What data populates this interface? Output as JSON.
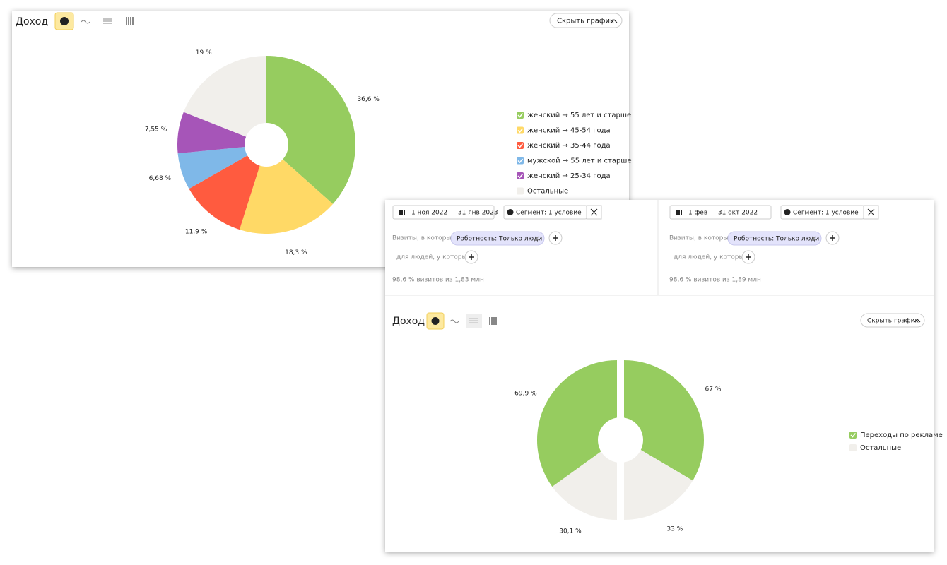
{
  "panel_top": {
    "title": "Доход",
    "hide_button": "Скрыть график"
  },
  "panel_bottom": {
    "segments": [
      {
        "date": "1 ноя 2022 — 31 янв 2023",
        "segment": "Сегмент: 1 условие",
        "visits_label": "Визиты, в которых",
        "tag": "Роботность: Только люди",
        "people_label": "для людей, у которых",
        "summary": "98,6 % визитов из 1,83 млн"
      },
      {
        "date": "1 фев — 31 окт 2022",
        "segment": "Сегмент: 1 условие",
        "visits_label": "Визиты, в которых",
        "tag": "Роботность: Только люди",
        "people_label": "для людей, у которых",
        "summary": "98,6 % визитов из 1,89 млн"
      }
    ],
    "title": "Доход",
    "hide_button": "Скрыть график"
  },
  "chart_data": [
    {
      "type": "pie",
      "categories": [
        "женский → 55 лет и старше",
        "женский → 45-54 года",
        "женский → 35-44 года",
        "мужской → 55 лет и старше",
        "женский → 25-34 года",
        "Остальные"
      ],
      "values": [
        36.6,
        18.3,
        11.9,
        6.68,
        7.55,
        19
      ],
      "value_labels": [
        "36,6 %",
        "18,3 %",
        "11,9 %",
        "6,68 %",
        "7,55 %",
        "19 %"
      ],
      "colors": [
        "#96cc5f",
        "#ffd966",
        "#ff5b3f",
        "#7fb8e8",
        "#a655b8",
        "#f1efeb"
      ]
    },
    {
      "type": "split-pie",
      "categories": [
        "Переходы по рекламе",
        "Остальные"
      ],
      "colors": [
        "#96cc5f",
        "#f1efeb"
      ],
      "series": [
        {
          "values": [
            69.9,
            30.1
          ],
          "value_labels": [
            "69,9 %",
            "30,1 %"
          ]
        },
        {
          "values": [
            67,
            33
          ],
          "value_labels": [
            "67 %",
            "33 %"
          ]
        }
      ]
    }
  ]
}
